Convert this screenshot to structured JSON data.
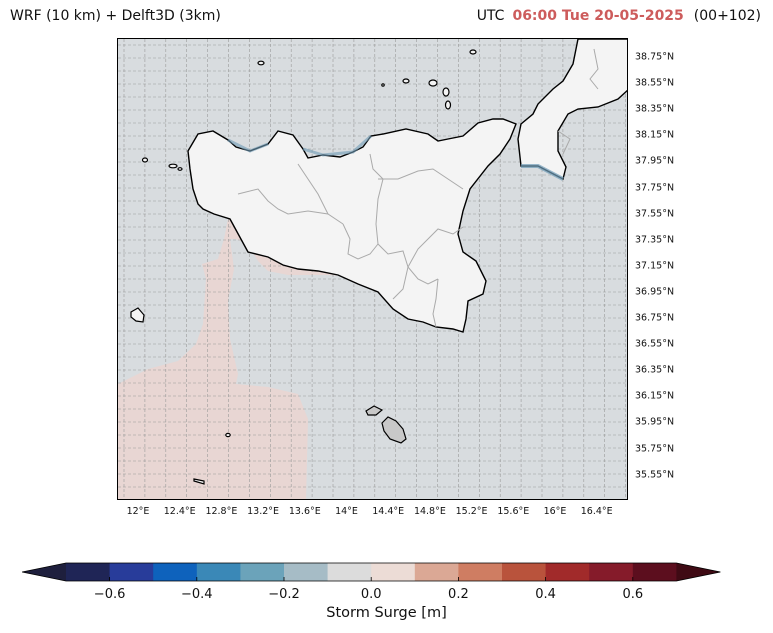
{
  "title": {
    "left": "WRF (10 km) + Delft3D (3km)",
    "utc": "UTC",
    "time": "06:00 Tue 20-05-2025",
    "run": "(00+102)",
    "time_color": "#cd5c5c"
  },
  "map": {
    "lat_labels": [
      "38.75°N",
      "38.55°N",
      "38.35°N",
      "38.15°N",
      "37.95°N",
      "37.75°N",
      "37.55°N",
      "37.35°N",
      "37.15°N",
      "36.95°N",
      "36.75°N",
      "36.55°N",
      "36.35°N",
      "36.15°N",
      "35.95°N",
      "35.75°N",
      "35.55°N"
    ],
    "lon_labels": [
      "12°E",
      "12.4°E",
      "12.8°E",
      "13.2°E",
      "13.6°E",
      "14°E",
      "14.4°E",
      "14.8°E",
      "15.2°E",
      "15.6°E",
      "16°E",
      "16.4°E"
    ],
    "sea_color": "#d8dcdf",
    "land_color": "#f4f4f4",
    "positive_surge_color": "#e8d6d3",
    "negative_surge_color": "#8fb1c6"
  },
  "colorbar": {
    "label": "Storm Surge [m]",
    "ticks": [
      "−0.6",
      "−0.4",
      "−0.2",
      "0.0",
      "0.2",
      "0.4",
      "0.6"
    ],
    "colors": [
      "#1f2556",
      "#283c9a",
      "#0e62bc",
      "#3a88b7",
      "#6ba3ba",
      "#a6bcc6",
      "#dcdcdc",
      "#ecdcd6",
      "#dba895",
      "#cf7d62",
      "#b9533c",
      "#a12a2a",
      "#851b2a",
      "#5c0e1e"
    ],
    "min_color": "#1e1f3d",
    "max_color": "#3f0a14"
  }
}
